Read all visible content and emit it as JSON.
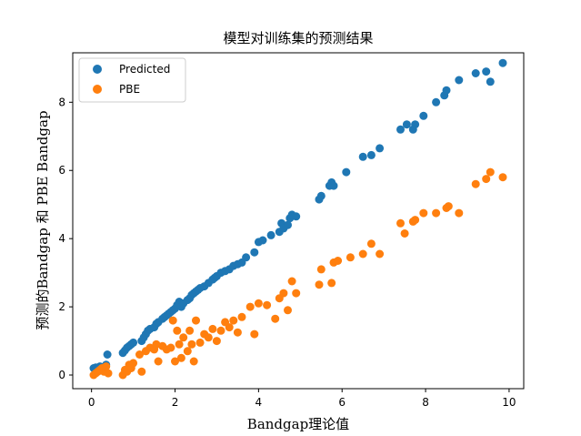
{
  "chart_data": {
    "type": "scatter",
    "title": "模型对训练集的预测结果",
    "xlabel": "Bandgap理论值",
    "ylabel": "预测的Bandgap 和 PBE Bandgap",
    "xlim": [
      -0.45,
      10.35
    ],
    "ylim": [
      -0.4,
      9.45
    ],
    "xticks": [
      0,
      2,
      4,
      6,
      8,
      10
    ],
    "yticks": [
      0,
      2,
      4,
      6,
      8
    ],
    "grid": false,
    "legend_position": "upper-left",
    "colors": {
      "Predicted": "#1f77b4",
      "PBE": "#ff7f0e"
    },
    "series": [
      {
        "name": "Predicted",
        "points": [
          [
            0.05,
            0.2
          ],
          [
            0.1,
            0.22
          ],
          [
            0.15,
            0.18
          ],
          [
            0.2,
            0.25
          ],
          [
            0.25,
            0.2
          ],
          [
            0.3,
            0.22
          ],
          [
            0.35,
            0.3
          ],
          [
            0.38,
            0.6
          ],
          [
            0.75,
            0.65
          ],
          [
            0.8,
            0.72
          ],
          [
            0.85,
            0.8
          ],
          [
            0.9,
            0.85
          ],
          [
            0.95,
            0.9
          ],
          [
            1.0,
            0.95
          ],
          [
            1.2,
            1.0
          ],
          [
            1.25,
            1.1
          ],
          [
            1.3,
            1.2
          ],
          [
            1.35,
            1.3
          ],
          [
            1.4,
            1.35
          ],
          [
            1.5,
            1.4
          ],
          [
            1.55,
            1.5
          ],
          [
            1.6,
            1.55
          ],
          [
            1.7,
            1.65
          ],
          [
            1.75,
            1.7
          ],
          [
            1.8,
            1.75
          ],
          [
            1.85,
            1.8
          ],
          [
            1.9,
            1.85
          ],
          [
            1.95,
            1.9
          ],
          [
            2.0,
            1.95
          ],
          [
            2.05,
            2.05
          ],
          [
            2.1,
            2.15
          ],
          [
            2.15,
            2.0
          ],
          [
            2.2,
            2.1
          ],
          [
            2.3,
            2.2
          ],
          [
            2.35,
            2.25
          ],
          [
            2.4,
            2.35
          ],
          [
            2.45,
            2.4
          ],
          [
            2.5,
            2.45
          ],
          [
            2.55,
            2.5
          ],
          [
            2.6,
            2.55
          ],
          [
            2.7,
            2.6
          ],
          [
            2.8,
            2.7
          ],
          [
            2.9,
            2.8
          ],
          [
            2.95,
            2.85
          ],
          [
            3.0,
            2.9
          ],
          [
            3.1,
            3.0
          ],
          [
            3.2,
            3.05
          ],
          [
            3.3,
            3.1
          ],
          [
            3.4,
            3.2
          ],
          [
            3.5,
            3.25
          ],
          [
            3.6,
            3.3
          ],
          [
            3.7,
            3.45
          ],
          [
            3.9,
            3.6
          ],
          [
            4.0,
            3.9
          ],
          [
            4.1,
            3.95
          ],
          [
            4.3,
            4.1
          ],
          [
            4.5,
            4.2
          ],
          [
            4.55,
            4.45
          ],
          [
            4.6,
            4.3
          ],
          [
            4.7,
            4.4
          ],
          [
            4.75,
            4.6
          ],
          [
            4.8,
            4.7
          ],
          [
            4.9,
            4.65
          ],
          [
            5.45,
            5.15
          ],
          [
            5.5,
            5.25
          ],
          [
            5.7,
            5.55
          ],
          [
            5.75,
            5.65
          ],
          [
            5.8,
            5.55
          ],
          [
            6.1,
            5.95
          ],
          [
            6.5,
            6.4
          ],
          [
            6.7,
            6.45
          ],
          [
            6.9,
            6.65
          ],
          [
            7.4,
            7.2
          ],
          [
            7.55,
            7.35
          ],
          [
            7.7,
            7.2
          ],
          [
            7.75,
            7.35
          ],
          [
            7.95,
            7.6
          ],
          [
            8.25,
            8.0
          ],
          [
            8.45,
            8.2
          ],
          [
            8.5,
            8.35
          ],
          [
            8.8,
            8.65
          ],
          [
            9.2,
            8.85
          ],
          [
            9.45,
            8.9
          ],
          [
            9.55,
            8.6
          ],
          [
            9.85,
            9.15
          ]
        ]
      },
      {
        "name": "PBE",
        "points": [
          [
            0.05,
            0.0
          ],
          [
            0.1,
            0.05
          ],
          [
            0.15,
            0.1
          ],
          [
            0.2,
            0.15
          ],
          [
            0.25,
            0.2
          ],
          [
            0.3,
            0.1
          ],
          [
            0.35,
            0.25
          ],
          [
            0.4,
            0.05
          ],
          [
            0.75,
            0.0
          ],
          [
            0.8,
            0.15
          ],
          [
            0.85,
            0.1
          ],
          [
            0.9,
            0.3
          ],
          [
            0.95,
            0.2
          ],
          [
            1.0,
            0.35
          ],
          [
            1.15,
            0.6
          ],
          [
            1.2,
            0.1
          ],
          [
            1.3,
            0.7
          ],
          [
            1.4,
            0.8
          ],
          [
            1.5,
            0.75
          ],
          [
            1.55,
            0.9
          ],
          [
            1.6,
            0.4
          ],
          [
            1.7,
            0.85
          ],
          [
            1.8,
            0.75
          ],
          [
            1.9,
            0.8
          ],
          [
            1.95,
            1.6
          ],
          [
            2.0,
            0.4
          ],
          [
            2.05,
            1.3
          ],
          [
            2.1,
            0.9
          ],
          [
            2.15,
            0.5
          ],
          [
            2.2,
            1.1
          ],
          [
            2.3,
            0.7
          ],
          [
            2.35,
            1.3
          ],
          [
            2.4,
            0.9
          ],
          [
            2.45,
            0.4
          ],
          [
            2.5,
            1.6
          ],
          [
            2.6,
            0.95
          ],
          [
            2.7,
            1.2
          ],
          [
            2.8,
            1.1
          ],
          [
            2.9,
            1.35
          ],
          [
            3.0,
            1.0
          ],
          [
            3.1,
            1.3
          ],
          [
            3.2,
            1.55
          ],
          [
            3.3,
            1.4
          ],
          [
            3.4,
            1.6
          ],
          [
            3.5,
            1.25
          ],
          [
            3.6,
            1.7
          ],
          [
            3.8,
            2.0
          ],
          [
            3.9,
            1.2
          ],
          [
            4.0,
            2.1
          ],
          [
            4.2,
            2.05
          ],
          [
            4.4,
            1.65
          ],
          [
            4.5,
            2.25
          ],
          [
            4.6,
            2.4
          ],
          [
            4.7,
            1.9
          ],
          [
            4.8,
            2.75
          ],
          [
            4.9,
            2.4
          ],
          [
            5.45,
            2.65
          ],
          [
            5.5,
            3.1
          ],
          [
            5.75,
            2.7
          ],
          [
            5.8,
            3.3
          ],
          [
            5.9,
            3.35
          ],
          [
            6.2,
            3.45
          ],
          [
            6.5,
            3.55
          ],
          [
            6.7,
            3.85
          ],
          [
            6.9,
            3.55
          ],
          [
            7.4,
            4.45
          ],
          [
            7.5,
            4.15
          ],
          [
            7.7,
            4.5
          ],
          [
            7.75,
            4.55
          ],
          [
            7.95,
            4.75
          ],
          [
            8.25,
            4.75
          ],
          [
            8.5,
            4.9
          ],
          [
            8.55,
            4.95
          ],
          [
            8.8,
            4.75
          ],
          [
            9.2,
            5.6
          ],
          [
            9.45,
            5.75
          ],
          [
            9.55,
            5.95
          ],
          [
            9.85,
            5.8
          ]
        ]
      }
    ]
  }
}
